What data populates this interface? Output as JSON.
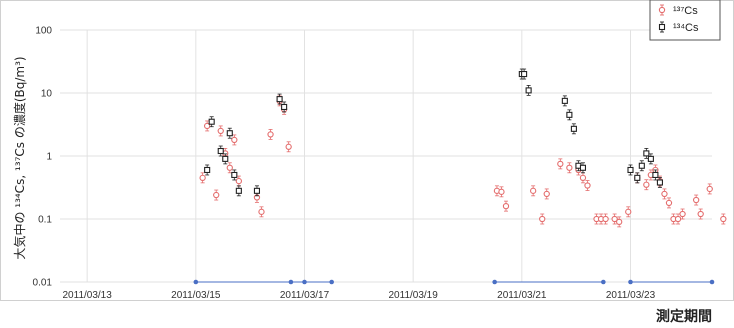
{
  "chart_data": {
    "type": "scatter",
    "title": "",
    "xlabel": "測定期間",
    "ylabel": "大気中の ¹³⁴Cs, ¹³⁷Cs の濃度(Bq/m³)",
    "y_scale": "log",
    "ylim": [
      0.01,
      100
    ],
    "xlim": [
      "2011-03-12 12:00",
      "2011-03-24 12:00"
    ],
    "yticks": [
      "0.01",
      "0.1",
      "1",
      "10",
      "100"
    ],
    "xticks": [
      "2011/03/13",
      "2011/03/15",
      "2011/03/17",
      "2011/03/19",
      "2011/03/21",
      "2011/03/23"
    ],
    "grid": true,
    "legend_position": "top-right",
    "colors": {
      "cs137": "#e46d6d",
      "cs134": "#222222",
      "baseline": "#4a6fc4",
      "grid": "#e2e2e2"
    },
    "series": [
      {
        "name": "¹³⁷Cs",
        "x": [
          "2011-03-15 03:00",
          "2011-03-15 05:00",
          "2011-03-15 09:00",
          "2011-03-15 11:00",
          "2011-03-15 13:00",
          "2011-03-15 15:00",
          "2011-03-15 17:00",
          "2011-03-15 19:00",
          "2011-03-16 03:00",
          "2011-03-16 05:00",
          "2011-03-16 09:00",
          "2011-03-16 13:00",
          "2011-03-16 15:00",
          "2011-03-16 17:00",
          "2011-03-20 13:00",
          "2011-03-20 15:00",
          "2011-03-20 17:00",
          "2011-03-21 05:00",
          "2011-03-21 09:00",
          "2011-03-21 11:00",
          "2011-03-21 17:00",
          "2011-03-21 21:00",
          "2011-03-22 01:00",
          "2011-03-22 03:00",
          "2011-03-22 05:00",
          "2011-03-22 09:00",
          "2011-03-22 11:00",
          "2011-03-22 13:00",
          "2011-03-22 17:00",
          "2011-03-22 19:00",
          "2011-03-22 23:00",
          "2011-03-23 03:00",
          "2011-03-23 07:00",
          "2011-03-23 09:00",
          "2011-03-23 11:00",
          "2011-03-23 13:00",
          "2011-03-23 15:00",
          "2011-03-23 17:00",
          "2011-03-23 19:00",
          "2011-03-23 21:00",
          "2011-03-23 23:00",
          "2011-03-24 05:00",
          "2011-03-24 07:00",
          "2011-03-24 11:00",
          "2011-03-24 17:00"
        ],
        "y": [
          0.45,
          3.0,
          0.24,
          2.5,
          1.1,
          0.65,
          1.8,
          0.4,
          0.22,
          0.13,
          2.2,
          7.5,
          5.5,
          1.4,
          0.28,
          0.27,
          0.16,
          0.28,
          0.1,
          0.25,
          0.75,
          0.65,
          0.6,
          0.45,
          0.34,
          0.1,
          0.1,
          0.1,
          0.1,
          0.09,
          0.13,
          0.45,
          0.35,
          0.5,
          0.6,
          0.4,
          0.25,
          0.18,
          0.1,
          0.1,
          0.12,
          0.2,
          0.12,
          0.3,
          0.1
        ],
        "marker": "circle-open"
      },
      {
        "name": "¹³⁴Cs",
        "x": [
          "2011-03-15 05:00",
          "2011-03-15 07:00",
          "2011-03-15 11:00",
          "2011-03-15 13:00",
          "2011-03-15 15:00",
          "2011-03-15 17:00",
          "2011-03-15 19:00",
          "2011-03-16 03:00",
          "2011-03-16 13:00",
          "2011-03-16 15:00",
          "2011-03-21 00:00",
          "2011-03-21 01:00",
          "2011-03-21 03:00",
          "2011-03-21 19:00",
          "2011-03-21 21:00",
          "2011-03-21 23:00",
          "2011-03-22 01:00",
          "2011-03-22 03:00",
          "2011-03-23 00:00",
          "2011-03-23 03:00",
          "2011-03-23 05:00",
          "2011-03-23 07:00",
          "2011-03-23 09:00",
          "2011-03-23 11:00",
          "2011-03-23 13:00"
        ],
        "y": [
          0.6,
          3.5,
          1.2,
          0.9,
          2.3,
          0.5,
          0.28,
          0.28,
          8.0,
          6.0,
          20,
          20,
          11,
          7.5,
          4.5,
          2.7,
          0.7,
          0.65,
          0.6,
          0.45,
          0.7,
          1.1,
          0.9,
          0.5,
          0.38
        ],
        "marker": "square-open"
      }
    ],
    "baseline_markers": {
      "y": 0.01,
      "x": [
        "2011-03-15 00:00",
        "2011-03-16 18:00",
        "2011-03-17 00:00",
        "2011-03-17 12:00",
        "2011-03-20 12:00",
        "2011-03-22 12:00",
        "2011-03-23 00:00",
        "2011-03-24 12:00"
      ]
    }
  }
}
